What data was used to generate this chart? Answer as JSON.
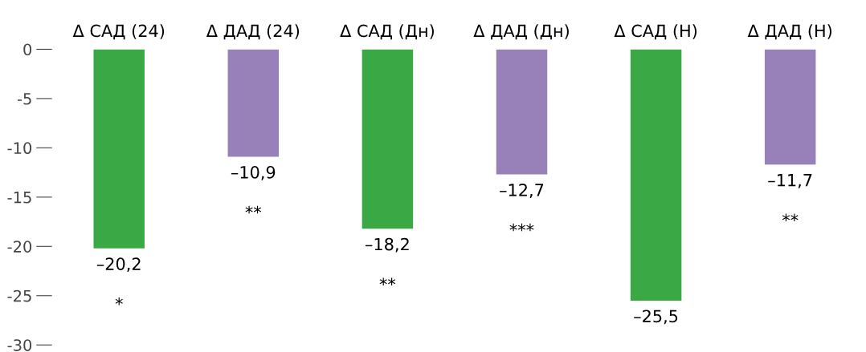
{
  "chart_data": {
    "type": "bar",
    "categories": [
      "Δ САД (24)",
      "Δ ДАД (24)",
      "Δ САД (Дн)",
      "Δ ДАД (Дн)",
      "Δ САД (Н)",
      "Δ ДАД (Н)"
    ],
    "values": [
      -20.2,
      -10.9,
      -18.2,
      -12.7,
      -25.5,
      -11.7
    ],
    "colors": [
      "#3aa844",
      "#9880b9",
      "#3aa844",
      "#9880b9",
      "#3aa844",
      "#9880b9"
    ],
    "value_labels": [
      "–20,2\n\n*",
      "–10,9\n\n**",
      "–18,2\n\n**",
      "–12,7\n\n***",
      "–25,5",
      "–11,7\n\n**"
    ],
    "ylim": [
      -30,
      0
    ],
    "yticks": [
      0,
      -5,
      -10,
      -15,
      -20,
      -25,
      -30
    ],
    "grid": false,
    "legend": false
  }
}
